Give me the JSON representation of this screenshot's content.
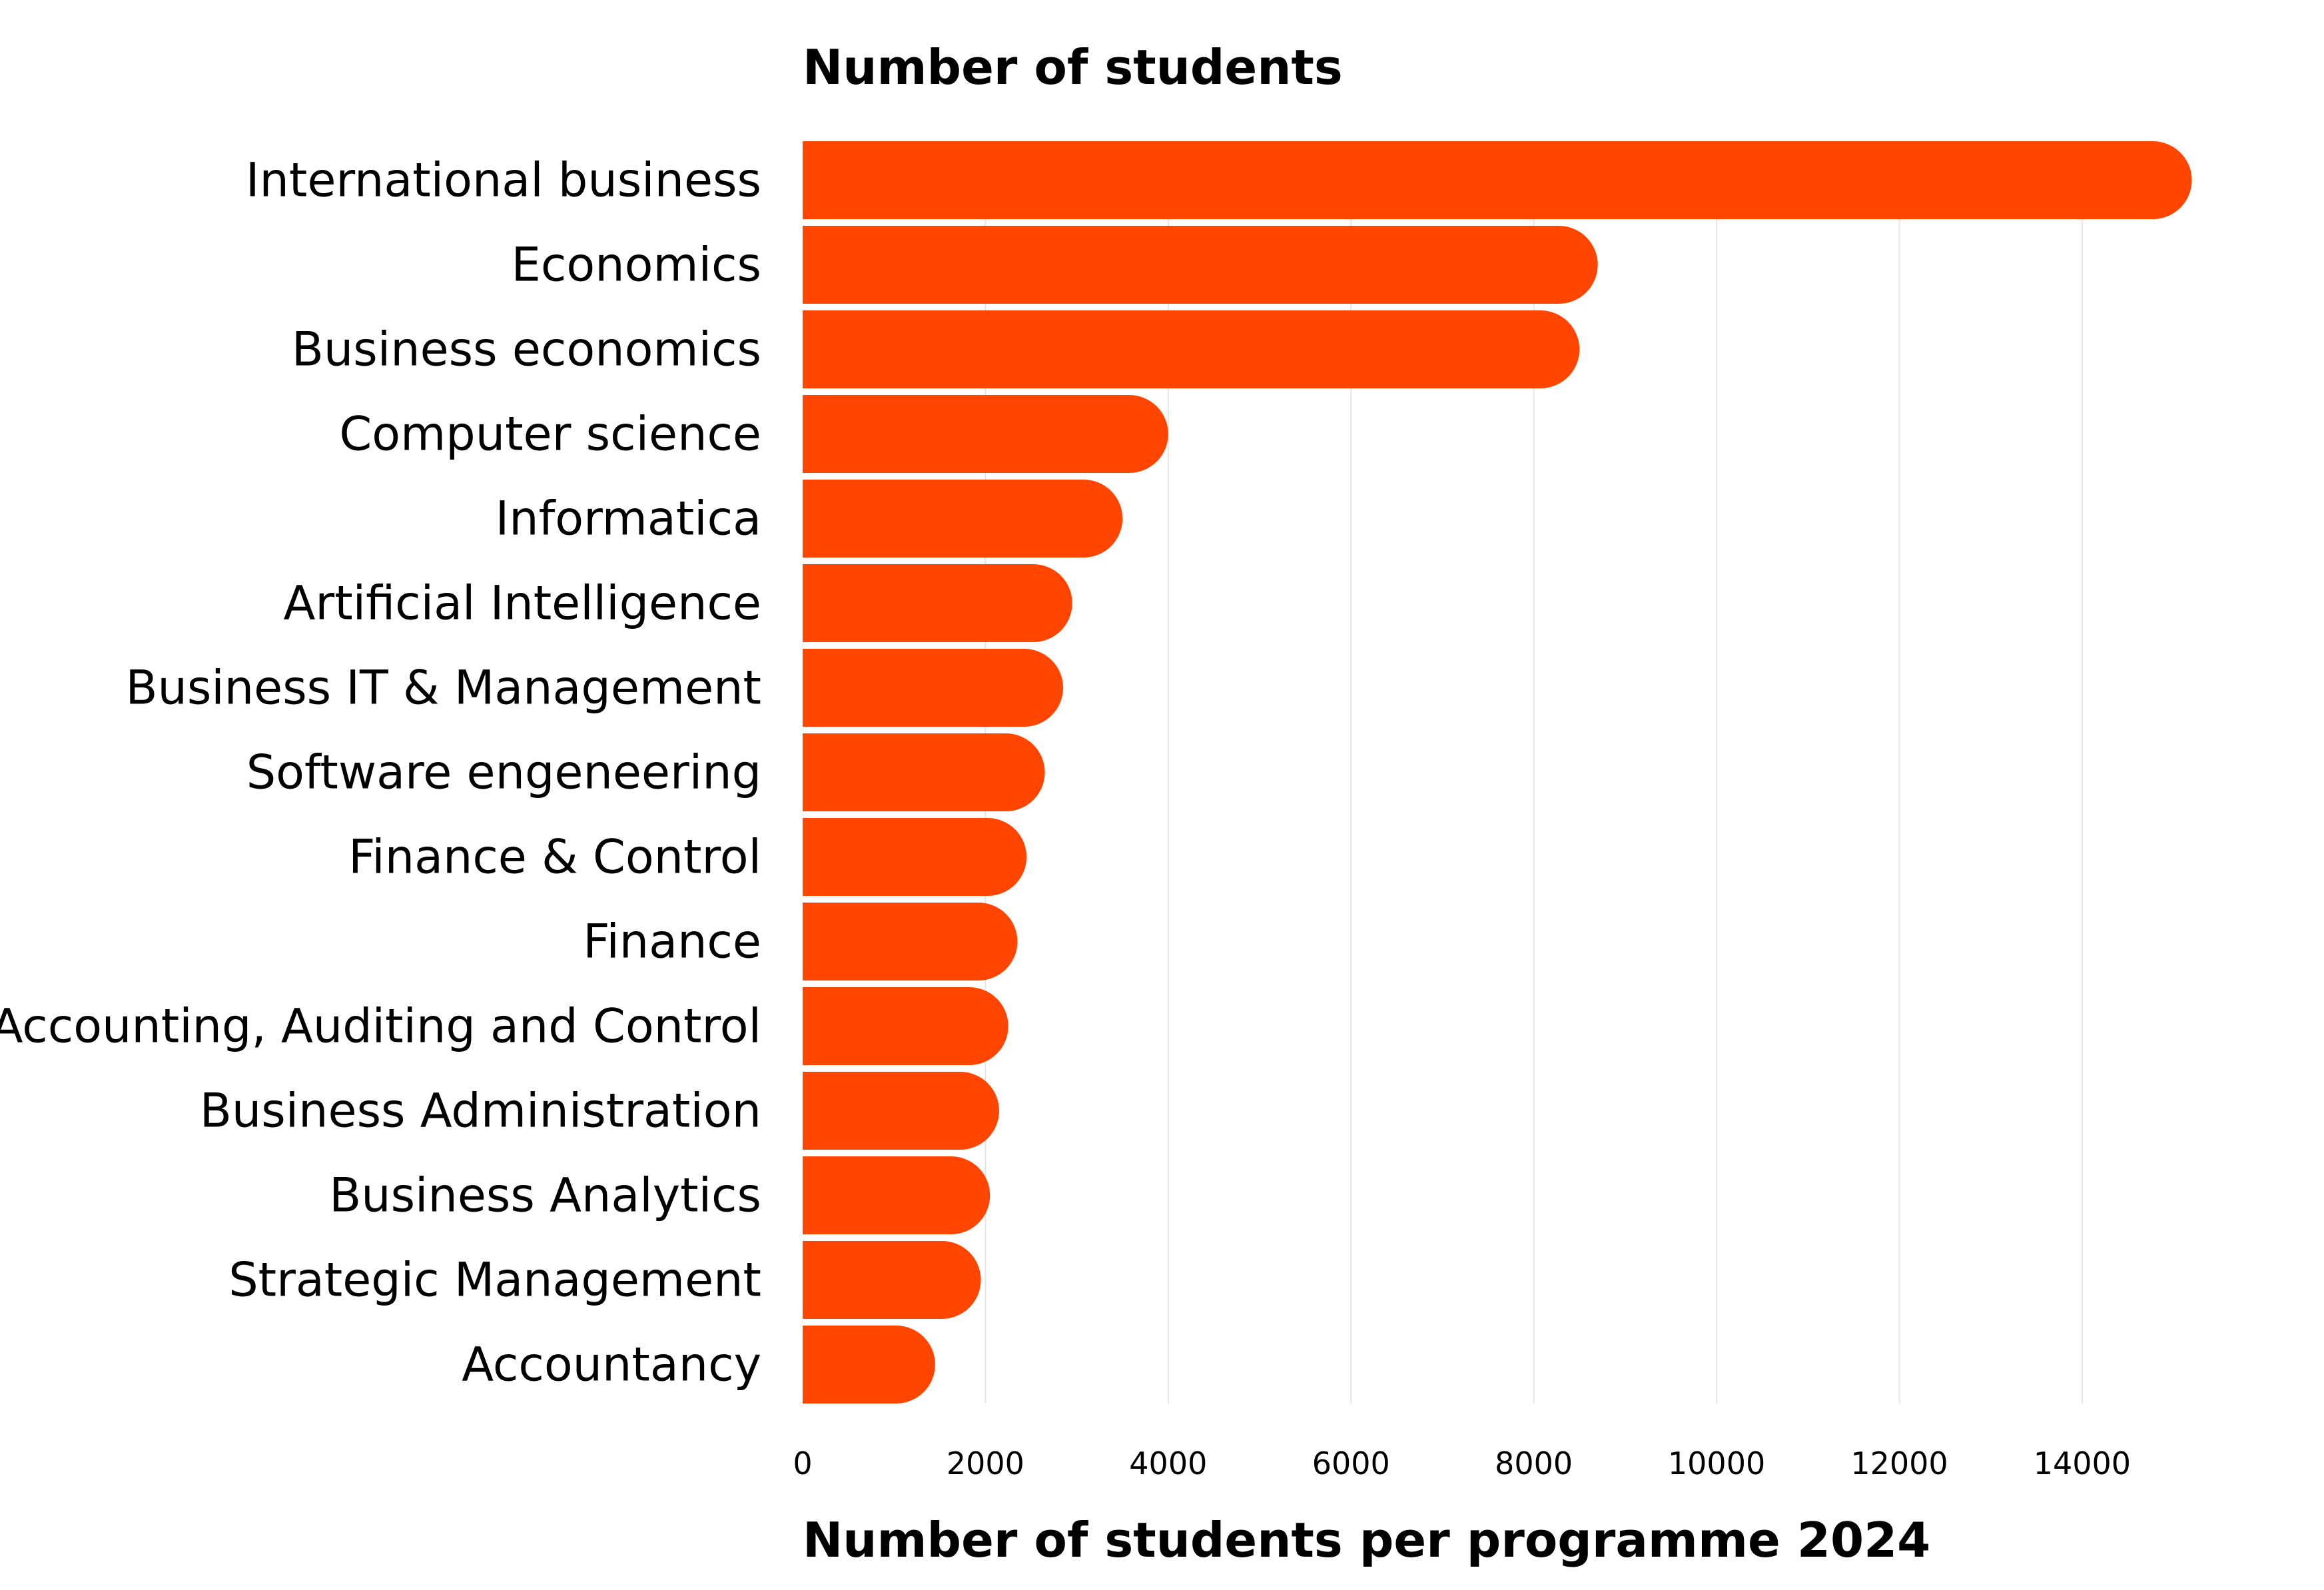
{
  "chart_data": {
    "type": "bar",
    "orientation": "horizontal",
    "title": "Number of students",
    "xlabel": "Number of students per programme 2024",
    "ylabel": "",
    "categories": [
      "International business",
      "Economics",
      "Business economics",
      "Computer science",
      "Informatica",
      "Artificial Intelligence",
      "Business IT & Management",
      "Software engeneering",
      "Finance & Control",
      "Finance",
      "Accounting, Auditing and Control",
      "Business Administration",
      "Business Analytics",
      "Strategic Management",
      "Accountancy"
    ],
    "values": [
      15200,
      8700,
      8500,
      4000,
      3500,
      2950,
      2850,
      2650,
      2450,
      2350,
      2250,
      2150,
      2050,
      1950,
      1450
    ],
    "xlim": [
      0,
      15400
    ],
    "xticks": [
      0,
      2000,
      4000,
      6000,
      8000,
      10000,
      12000,
      14000
    ],
    "xtick_labels": [
      "0",
      "2000",
      "4000",
      "6000",
      "8000",
      "10000",
      "12000",
      "14000"
    ],
    "grid": true,
    "legend": "none",
    "bar_color": "#FF4500",
    "grid_color": "#e6e6e6"
  }
}
